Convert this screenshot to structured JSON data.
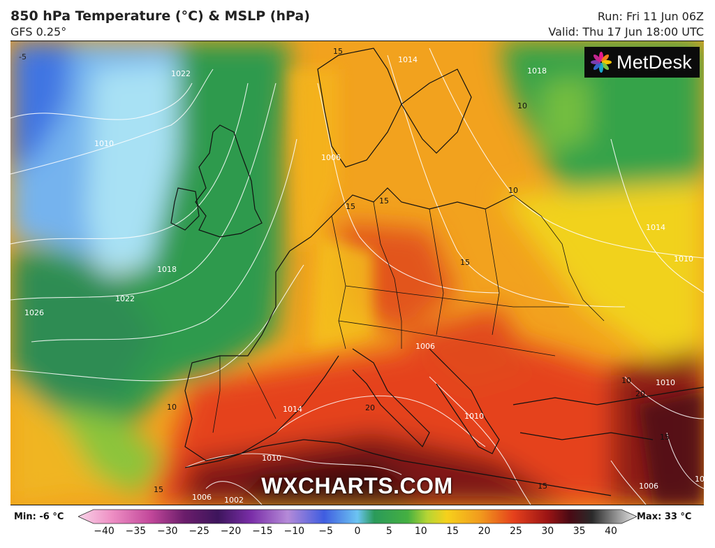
{
  "header": {
    "title": "850 hPa Temperature (°C) & MSLP (hPa)",
    "model": "GFS 0.25°",
    "run": "Run: Fri 11 Jun 06Z",
    "valid": "Valid: Thu 17 Jun 18:00 UTC"
  },
  "logo": {
    "text": "MetDesk",
    "icon": "metdesk-flower-icon"
  },
  "watermark": "WXCHARTS.COM",
  "map": {
    "isobar_labels": [
      "-5",
      "1010",
      "1018",
      "1022",
      "1026",
      "1006",
      "1014",
      "1010",
      "1014",
      "1010",
      "1022",
      "1018",
      "1010",
      "1006",
      "1014",
      "1010",
      "1006",
      "1002",
      "1002",
      "1006",
      "10",
      "10",
      "10",
      "10",
      "15",
      "15",
      "15",
      "15",
      "15",
      "15",
      "20",
      "20",
      "15"
    ],
    "colors": {
      "cold_blue": "#4a7ee6",
      "light_blue": "#9ad8f0",
      "green": "#2e9d4e",
      "yellow": "#f3c21a",
      "orange": "#f08a1c",
      "red": "#e23a1b",
      "dark_red": "#7a1010"
    }
  },
  "legend": {
    "min_label": "Min: -6 °C",
    "max_label": "Max: 33 °C",
    "ticks": [
      "−40",
      "−35",
      "−30",
      "−25",
      "−20",
      "−15",
      "−10",
      "−5",
      "0",
      "5",
      "10",
      "15",
      "20",
      "25",
      "30",
      "35",
      "40"
    ],
    "scale_min": -40,
    "scale_max": 40
  }
}
